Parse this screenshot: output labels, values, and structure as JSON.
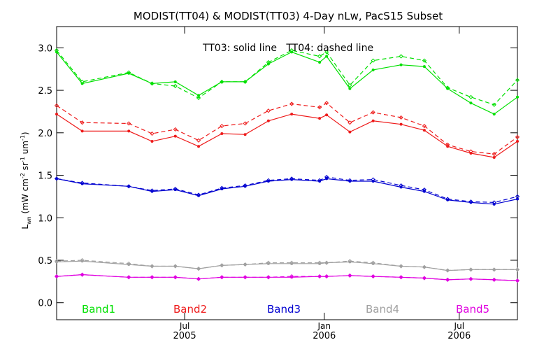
{
  "chart_data": {
    "type": "line",
    "title": "MODIST(TT04) & MODIST(TT03) 4-Day nLw, PacS15 Subset",
    "annotation": "TT03: solid line   TT04: dashed line",
    "ylabel": {
      "main": "L",
      "sub": "wn",
      "units": "(mW cm",
      "e1": "-2",
      "sr": " sr",
      "e2": "-1",
      "um": " um",
      "e3": "-1",
      "close": ")"
    },
    "ylim": [
      -0.2,
      3.25
    ],
    "xlim": [
      0,
      396
    ],
    "yticks": [
      0.0,
      0.5,
      1.0,
      1.5,
      2.0,
      2.5,
      3.0
    ],
    "ytick_labels": [
      "0.0",
      "0.5",
      "1.0",
      "1.5",
      "2.0",
      "2.5",
      "3.0"
    ],
    "xticks": [
      {
        "x": 110,
        "month": "Jul",
        "year": "2005"
      },
      {
        "x": 230,
        "month": "Jan",
        "year": "2006"
      },
      {
        "x": 346,
        "month": "Jul",
        "year": "2006"
      }
    ],
    "x": [
      0,
      22,
      62,
      82,
      102,
      122,
      142,
      162,
      182,
      202,
      226,
      232,
      252,
      272,
      296,
      316,
      336,
      356,
      376,
      396
    ],
    "series": [
      {
        "name": "Band1",
        "color": "#00e000",
        "tt03": [
          2.95,
          2.58,
          2.7,
          2.58,
          2.6,
          2.44,
          2.6,
          2.6,
          2.81,
          2.95,
          2.83,
          2.9,
          2.52,
          2.74,
          2.8,
          2.78,
          2.52,
          2.35,
          2.22,
          2.42
        ],
        "tt04": [
          2.97,
          2.6,
          2.71,
          2.58,
          2.55,
          2.41,
          2.6,
          2.6,
          2.83,
          2.97,
          2.9,
          2.95,
          2.56,
          2.85,
          2.9,
          2.85,
          2.53,
          2.42,
          2.33,
          2.62
        ]
      },
      {
        "name": "Band2",
        "color": "#ee1a1a",
        "tt03": [
          2.22,
          2.02,
          2.02,
          1.9,
          1.96,
          1.84,
          1.99,
          1.98,
          2.14,
          2.22,
          2.17,
          2.21,
          2.01,
          2.14,
          2.1,
          2.03,
          1.84,
          1.76,
          1.71,
          1.9
        ],
        "tt04": [
          2.32,
          2.12,
          2.11,
          1.99,
          2.04,
          1.91,
          2.08,
          2.11,
          2.26,
          2.34,
          2.3,
          2.35,
          2.12,
          2.24,
          2.18,
          2.08,
          1.86,
          1.78,
          1.75,
          1.95
        ]
      },
      {
        "name": "Band3",
        "color": "#0000d0",
        "tt03": [
          1.46,
          1.4,
          1.37,
          1.31,
          1.33,
          1.26,
          1.34,
          1.37,
          1.43,
          1.45,
          1.43,
          1.46,
          1.43,
          1.43,
          1.36,
          1.31,
          1.21,
          1.18,
          1.16,
          1.22
        ],
        "tt04": [
          1.46,
          1.41,
          1.37,
          1.32,
          1.34,
          1.27,
          1.35,
          1.38,
          1.44,
          1.46,
          1.44,
          1.48,
          1.44,
          1.45,
          1.38,
          1.33,
          1.22,
          1.19,
          1.18,
          1.25
        ]
      },
      {
        "name": "Band4",
        "color": "#a0a0a0",
        "tt03": [
          0.48,
          0.49,
          0.45,
          0.43,
          0.43,
          0.4,
          0.44,
          0.45,
          0.46,
          0.46,
          0.46,
          0.47,
          0.48,
          0.46,
          0.43,
          0.42,
          0.38,
          0.39,
          0.39,
          0.39
        ],
        "tt04": [
          0.49,
          0.5,
          0.46,
          0.43,
          0.43,
          0.4,
          0.44,
          0.45,
          0.47,
          0.47,
          0.47,
          0.47,
          0.49,
          0.47,
          0.43,
          0.42,
          0.38,
          0.39,
          0.39,
          0.39
        ]
      },
      {
        "name": "Band5",
        "color": "#e000e0",
        "tt03": [
          0.31,
          0.33,
          0.3,
          0.3,
          0.3,
          0.28,
          0.3,
          0.3,
          0.3,
          0.3,
          0.31,
          0.31,
          0.32,
          0.31,
          0.3,
          0.29,
          0.27,
          0.28,
          0.27,
          0.26
        ],
        "tt04": [
          0.31,
          0.33,
          0.3,
          0.3,
          0.3,
          0.28,
          0.3,
          0.3,
          0.3,
          0.31,
          0.31,
          0.31,
          0.32,
          0.31,
          0.3,
          0.29,
          0.27,
          0.28,
          0.27,
          0.26
        ]
      }
    ],
    "grid": false,
    "legend_position": "bottom inside plot"
  }
}
